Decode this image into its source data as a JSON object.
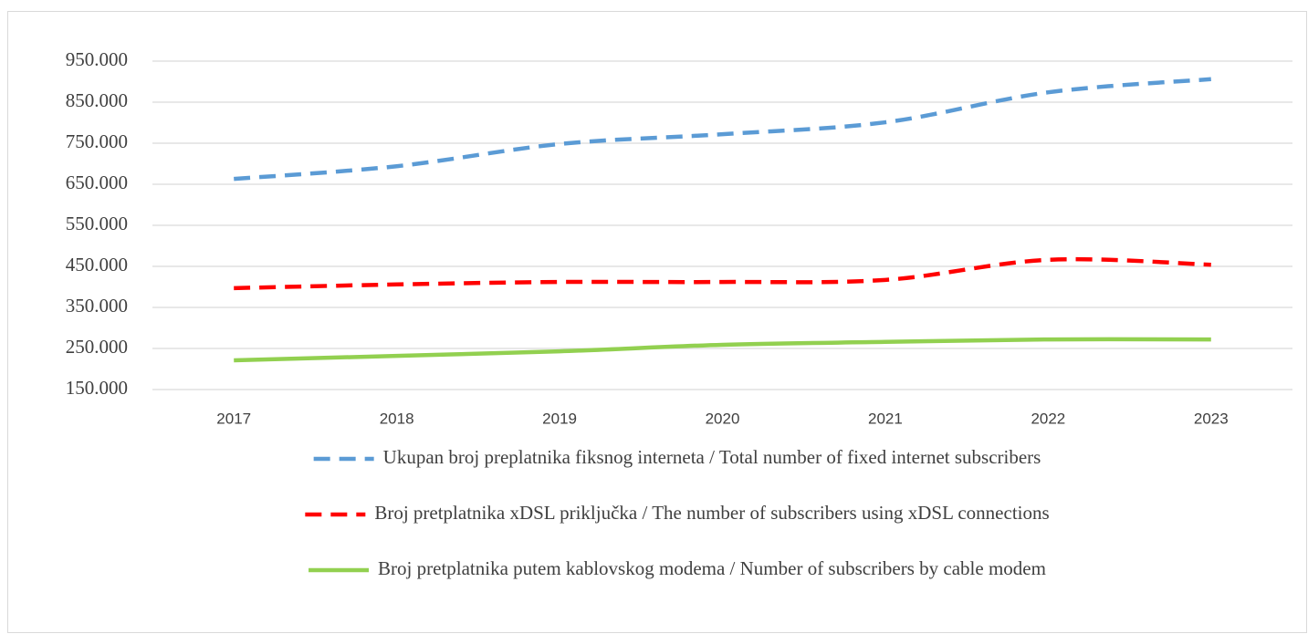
{
  "chart_data": {
    "type": "line",
    "categories": [
      "2017",
      "2018",
      "2019",
      "2020",
      "2021",
      "2022",
      "2023"
    ],
    "series": [
      {
        "name": "Ukupan broj preplatnika fiksnog interneta / Total number of fixed internet subscribers",
        "color": "#5b9bd5",
        "line_style": "dashed",
        "values": [
          663000,
          694000,
          748000,
          772000,
          801000,
          874000,
          906000
        ]
      },
      {
        "name": "Broj pretplatnika xDSL priključka / The number of subscribers using xDSL connections",
        "color": "#ff0000",
        "line_style": "dashed",
        "values": [
          397000,
          406000,
          412000,
          412000,
          417000,
          466000,
          454000
        ]
      },
      {
        "name": "Broj pretplatnika putem kablovskog modema / Number of subscribers by cable modem",
        "color": "#92d050",
        "line_style": "solid",
        "values": [
          221000,
          232000,
          243000,
          259000,
          266000,
          272000,
          272000
        ]
      }
    ],
    "ylim": [
      150000,
      950000
    ],
    "yticks": [
      {
        "value": 150000,
        "label": "150.000"
      },
      {
        "value": 250000,
        "label": "250.000"
      },
      {
        "value": 350000,
        "label": "350.000"
      },
      {
        "value": 450000,
        "label": "450.000"
      },
      {
        "value": 550000,
        "label": "550.000"
      },
      {
        "value": 650000,
        "label": "650.000"
      },
      {
        "value": 750000,
        "label": "750.000"
      },
      {
        "value": 850000,
        "label": "850.000"
      },
      {
        "value": 950000,
        "label": "950.000"
      }
    ],
    "grid": true,
    "smooth": true,
    "legend": "bottom"
  }
}
